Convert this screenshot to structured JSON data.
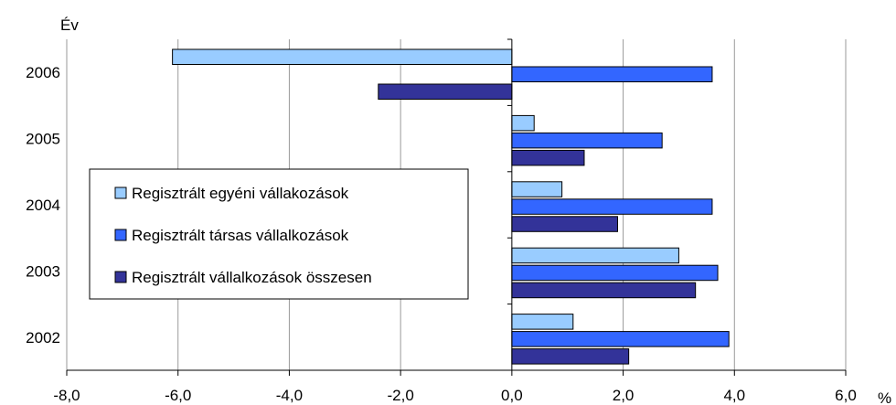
{
  "chart_data": {
    "type": "bar",
    "orientation": "horizontal",
    "title": "",
    "ylabel": "Év",
    "xlabel": "%",
    "categories": [
      "2006",
      "2005",
      "2004",
      "2003",
      "2002"
    ],
    "xlim": [
      -8.0,
      6.0
    ],
    "xticks": [
      -8.0,
      -6.0,
      -4.0,
      -2.0,
      0.0,
      2.0,
      4.0,
      6.0
    ],
    "xtick_labels": [
      "-8,0",
      "-6,0",
      "-4,0",
      "-2,0",
      "0,0",
      "2,0",
      "4,0",
      "6,0"
    ],
    "grid": true,
    "legend_position": "center-left",
    "series": [
      {
        "name": "Regisztrált egyéni vállakozások",
        "color": "#99CCFF",
        "values": [
          -6.1,
          0.4,
          0.9,
          3.0,
          1.1
        ]
      },
      {
        "name": "Regisztrált társas vállalkozások",
        "color": "#3366FF",
        "values": [
          3.6,
          2.7,
          3.6,
          3.7,
          3.9
        ]
      },
      {
        "name": "Regisztrált vállalkozások összesen",
        "color": "#333399",
        "values": [
          -2.4,
          1.3,
          1.9,
          3.3,
          2.1
        ]
      }
    ]
  }
}
